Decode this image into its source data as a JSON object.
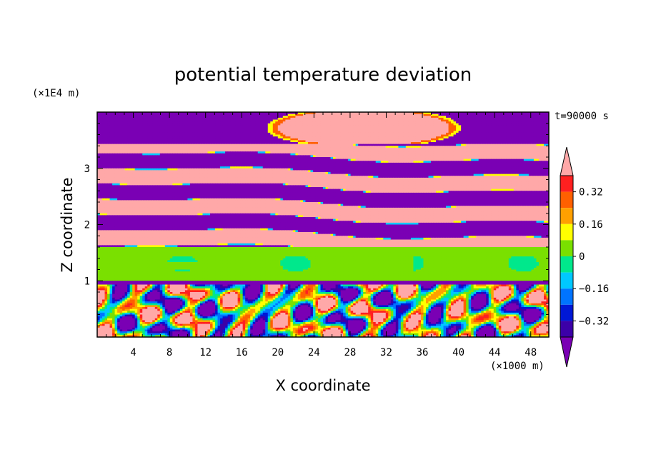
{
  "chart_data": {
    "type": "heatmap",
    "title": "potential temperature deviation",
    "xlabel": "X coordinate",
    "ylabel": "Z coordinate",
    "x_unit": "(×1000 m)",
    "y_unit": "(×1E4 m)",
    "time_label": "t=90000 s",
    "xlim": [
      0,
      50
    ],
    "ylim": [
      0,
      4
    ],
    "x_ticks": [
      4,
      8,
      12,
      16,
      20,
      24,
      28,
      32,
      36,
      40,
      44,
      48
    ],
    "y_ticks": [
      1,
      2,
      3
    ],
    "colorbar": {
      "levels": [
        -0.4,
        -0.32,
        -0.24,
        -0.16,
        -0.08,
        0,
        0.08,
        0.16,
        0.24,
        0.32,
        0.4
      ],
      "tick_labels": [
        "0.32",
        "0.16",
        "0",
        "−0.16",
        "−0.32"
      ],
      "tick_values": [
        0.32,
        0.16,
        0,
        -0.16,
        -0.32
      ],
      "colors": [
        "#7a00b4",
        "#3c00a8",
        "#0018d6",
        "#0074ff",
        "#00c8ff",
        "#00e88c",
        "#7ae000",
        "#ffff00",
        "#ffa000",
        "#ff6000",
        "#ff2020",
        "#ffa8a8"
      ],
      "extend": "both"
    }
  }
}
